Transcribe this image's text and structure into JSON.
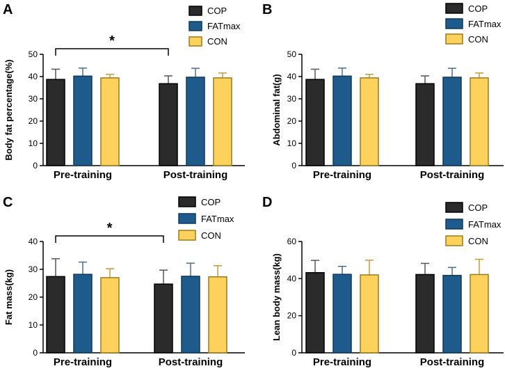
{
  "colors": {
    "COP": "#2b2b2b",
    "FATmax": "#1f5a8c",
    "CON": "#fdd25c",
    "CON_outline": "#9a7a20",
    "axis": "#000000"
  },
  "chart_data": [
    {
      "panel": "A",
      "type": "bar",
      "title": "",
      "ylabel": "Body fat percentage(%)",
      "xlabel": "",
      "ylim": [
        0,
        50
      ],
      "yticks": [
        0,
        10,
        20,
        30,
        40,
        50
      ],
      "categories": [
        "Pre-training",
        "Post-training"
      ],
      "series": [
        {
          "name": "COP",
          "values": [
            38.7,
            36.8
          ],
          "errors": [
            4.6,
            3.5
          ]
        },
        {
          "name": "FATmax",
          "values": [
            40.2,
            39.7
          ],
          "errors": [
            3.6,
            4.0
          ]
        },
        {
          "name": "CON",
          "values": [
            39.4,
            39.4
          ],
          "errors": [
            1.6,
            2.2
          ]
        }
      ],
      "legend": [
        "COP",
        "FATmax",
        "CON"
      ],
      "annotation": {
        "text": "*",
        "from": "Pre-training COP",
        "to": "Post-training COP"
      }
    },
    {
      "panel": "B",
      "type": "bar",
      "title": "",
      "ylabel": "Abdominal fat(g)",
      "xlabel": "",
      "ylim": [
        0,
        50
      ],
      "yticks": [
        0,
        10,
        20,
        30,
        40,
        50
      ],
      "categories": [
        "Pre-training",
        "Post-training"
      ],
      "series": [
        {
          "name": "COP",
          "values": [
            38.7,
            36.8
          ],
          "errors": [
            4.6,
            3.5
          ]
        },
        {
          "name": "FATmax",
          "values": [
            40.2,
            39.7
          ],
          "errors": [
            3.6,
            4.0
          ]
        },
        {
          "name": "CON",
          "values": [
            39.4,
            39.4
          ],
          "errors": [
            1.6,
            2.2
          ]
        }
      ],
      "legend": [
        "COP",
        "FATmax",
        "CON"
      ],
      "annotation": null
    },
    {
      "panel": "C",
      "type": "bar",
      "title": "",
      "ylabel": "Fat mass(kg)",
      "xlabel": "",
      "ylim": [
        0,
        40
      ],
      "yticks": [
        0,
        10,
        20,
        30,
        40
      ],
      "categories": [
        "Pre-training",
        "Post-training"
      ],
      "series": [
        {
          "name": "COP",
          "values": [
            27.4,
            24.7
          ],
          "errors": [
            6.4,
            5.0
          ]
        },
        {
          "name": "FATmax",
          "values": [
            28.2,
            27.5
          ],
          "errors": [
            4.4,
            4.7
          ]
        },
        {
          "name": "CON",
          "values": [
            27.0,
            27.3
          ],
          "errors": [
            3.2,
            4.0
          ]
        }
      ],
      "legend": [
        "COP",
        "FATmax",
        "CON"
      ],
      "annotation": {
        "text": "*",
        "from": "Pre-training COP",
        "to": "Post-training COP"
      }
    },
    {
      "panel": "D",
      "type": "bar",
      "title": "",
      "ylabel": "Lean body mass(kg)",
      "xlabel": "",
      "ylim": [
        0,
        60
      ],
      "yticks": [
        0,
        20,
        40,
        60
      ],
      "categories": [
        "Pre-training",
        "Post-training"
      ],
      "series": [
        {
          "name": "COP",
          "values": [
            43.2,
            42.2
          ],
          "errors": [
            6.6,
            6.0
          ]
        },
        {
          "name": "FATmax",
          "values": [
            42.3,
            41.7
          ],
          "errors": [
            4.3,
            4.3
          ]
        },
        {
          "name": "CON",
          "values": [
            42.0,
            42.2
          ],
          "errors": [
            7.9,
            8.2
          ]
        }
      ],
      "legend": [
        "COP",
        "FATmax",
        "CON"
      ],
      "annotation": null
    }
  ]
}
